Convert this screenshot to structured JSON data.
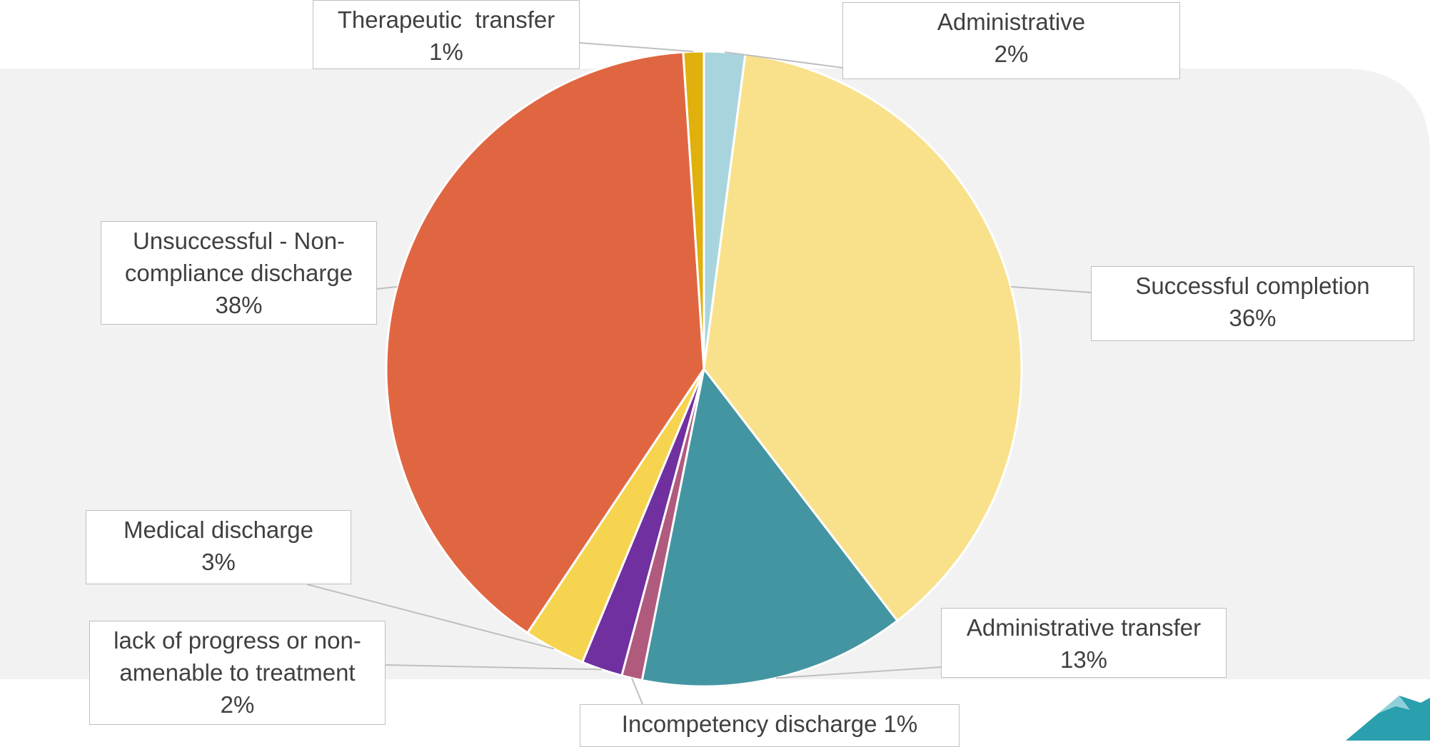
{
  "chart_data": {
    "type": "pie",
    "categories": [
      "Administrative",
      "Successful completion",
      "Administrative transfer",
      "Incompetency discharge",
      "lack of progress or non-amenable to treatment",
      "Medical discharge",
      "Unsuccessful - Non-compliance discharge",
      "Therapeutic  transfer"
    ],
    "values": [
      2,
      36,
      13,
      1,
      2,
      3,
      38,
      1
    ],
    "value_labels": [
      "2%",
      "36%",
      "13%",
      "1%",
      "2%",
      "3%",
      "38%",
      "1%"
    ],
    "colors": [
      "#a8d5dd",
      "#f9e18b",
      "#4495a2",
      "#b05a7d",
      "#7030a0",
      "#f6d44f",
      "#e06641",
      "#e0b00c"
    ]
  }
}
